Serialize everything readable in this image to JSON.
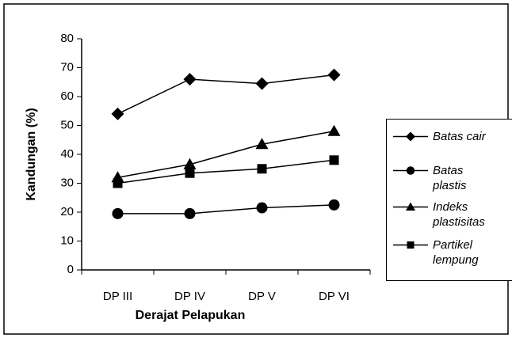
{
  "chart_data": {
    "type": "line",
    "x_label": "Derajat Pelapukan",
    "y_label": "Kandungan (%)",
    "categories": [
      "DP III",
      "DP IV",
      "DP V",
      "DP VI"
    ],
    "series": [
      {
        "name": "Batas cair",
        "color": "#000000",
        "marker": "diamond",
        "values": [
          54,
          66,
          64.5,
          67.5
        ]
      },
      {
        "name": "Batas plastis",
        "color": "#000000",
        "marker": "circle",
        "values": [
          19.5,
          19.5,
          21.5,
          22.5
        ]
      },
      {
        "name": "Indeks plastisitas",
        "color": "#000000",
        "marker": "triangle",
        "values": [
          32,
          36.5,
          43.5,
          48
        ]
      },
      {
        "name": "Partikel lempung",
        "color": "#000000",
        "marker": "square",
        "values": [
          30,
          33.5,
          35,
          38
        ]
      }
    ],
    "ylim": [
      0,
      80
    ],
    "yticks": [
      0,
      10,
      20,
      30,
      40,
      50,
      60,
      70,
      80
    ],
    "grid": false,
    "legend": "right"
  }
}
